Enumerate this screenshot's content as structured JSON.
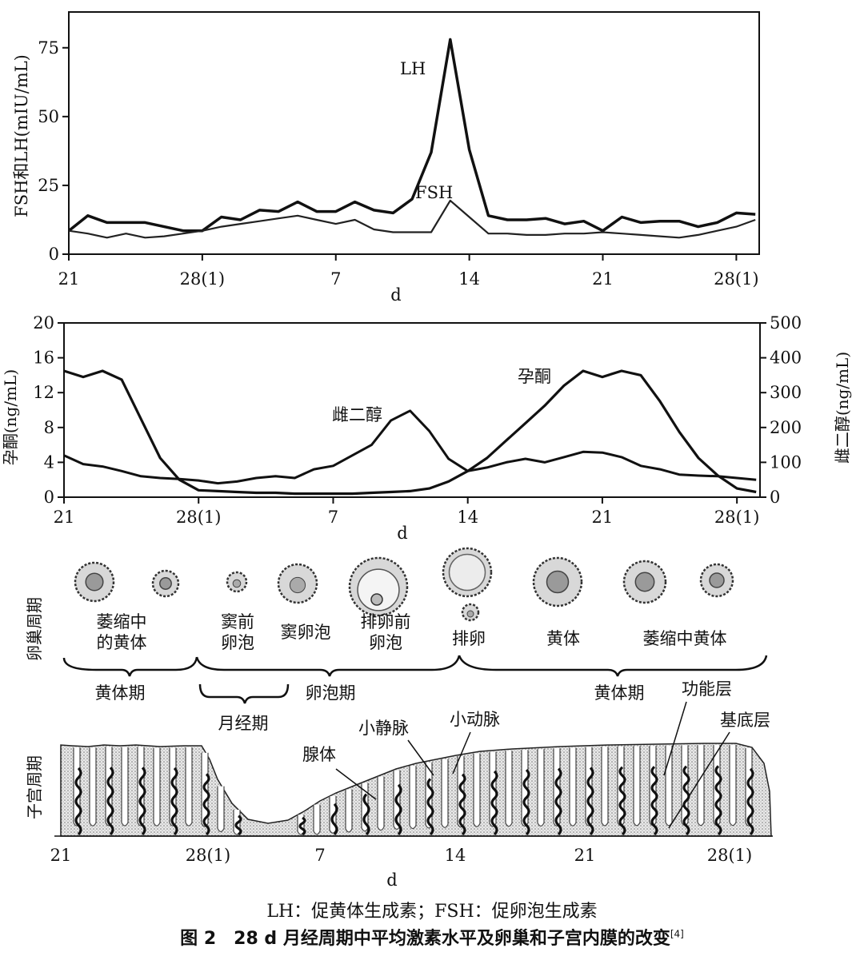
{
  "chart_data": [
    {
      "type": "line",
      "ylabel": "FSH和LH(mIU/mL)",
      "xlabel": "d",
      "x_ticks": [
        "21",
        "28(1)",
        "7",
        "14",
        "21",
        "28(1)"
      ],
      "x_tick_days": [
        0,
        7,
        14,
        21,
        28,
        35
      ],
      "y_ticks": [
        "0",
        "25",
        "50",
        "75"
      ],
      "ylim": [
        0,
        88
      ],
      "series": [
        {
          "name": "LH",
          "x": [
            0,
            1,
            2,
            3,
            4,
            5,
            6,
            7,
            8,
            9,
            10,
            11,
            12,
            13,
            14,
            15,
            16,
            17,
            18,
            19,
            20,
            21,
            22,
            23,
            24,
            25,
            26,
            27,
            28,
            29,
            30,
            31,
            32,
            33,
            34,
            35,
            36
          ],
          "y": [
            8.5,
            14,
            11.5,
            11.5,
            11.5,
            10,
            8.5,
            8.5,
            13.5,
            12.5,
            16,
            15.5,
            19,
            15.5,
            15.5,
            19,
            16,
            15,
            20,
            37,
            78,
            38,
            14,
            12.5,
            12.5,
            13,
            11,
            12,
            8.5,
            13.5,
            11.5,
            12,
            12,
            10,
            11.5,
            15,
            14.5
          ]
        },
        {
          "name": "FSH",
          "x": [
            0,
            1,
            2,
            3,
            4,
            5,
            6,
            7,
            8,
            9,
            10,
            11,
            12,
            13,
            14,
            15,
            16,
            17,
            18,
            19,
            20,
            21,
            22,
            23,
            24,
            25,
            26,
            27,
            28,
            29,
            30,
            31,
            32,
            33,
            34,
            35,
            36
          ],
          "y": [
            8.5,
            7.5,
            6,
            7.5,
            6,
            6.5,
            7.5,
            8.5,
            10,
            11,
            12,
            13,
            14,
            12.5,
            11,
            12.5,
            9,
            8,
            8,
            8,
            19.5,
            13.5,
            7.5,
            7.5,
            7,
            7,
            7.5,
            7.5,
            8,
            7.5,
            7,
            6.5,
            6,
            7,
            8.5,
            10,
            12.5
          ]
        }
      ]
    },
    {
      "type": "line",
      "ylabel": "孕酮(ng/mL)",
      "ylabel_right": "雌二醇(ng/mL)",
      "xlabel": "d",
      "x_ticks": [
        "21",
        "28(1)",
        "7",
        "14",
        "21",
        "28(1)"
      ],
      "x_tick_days": [
        0,
        7,
        14,
        21,
        28,
        35
      ],
      "y_ticks": [
        "0",
        "4",
        "8",
        "12",
        "16",
        "20"
      ],
      "y_right_ticks": [
        "0",
        "100",
        "200",
        "300",
        "400",
        "500"
      ],
      "ylim": [
        0,
        20
      ],
      "ylim_right": [
        0,
        500
      ],
      "series": [
        {
          "name": "孕酮",
          "axis": "left",
          "x": [
            0,
            1,
            2,
            3,
            4,
            5,
            6,
            7,
            8,
            9,
            10,
            11,
            12,
            13,
            14,
            15,
            16,
            17,
            18,
            19,
            20,
            21,
            22,
            23,
            24,
            25,
            26,
            27,
            28,
            29,
            30,
            31,
            32,
            33,
            34,
            35,
            36
          ],
          "y": [
            14.5,
            13.8,
            14.5,
            13.5,
            9,
            4.5,
            2,
            0.8,
            0.7,
            0.6,
            0.5,
            0.5,
            0.4,
            0.4,
            0.4,
            0.4,
            0.5,
            0.6,
            0.7,
            1,
            1.8,
            3,
            4.5,
            6.5,
            8.5,
            10.5,
            12.8,
            14.5,
            13.8,
            14.5,
            14,
            11,
            7.5,
            4.5,
            2.5,
            1,
            0.6
          ]
        },
        {
          "name": "雌二醇",
          "axis": "right",
          "x": [
            0,
            1,
            2,
            3,
            4,
            5,
            6,
            7,
            8,
            9,
            10,
            11,
            12,
            13,
            14,
            15,
            16,
            17,
            18,
            19,
            20,
            21,
            22,
            23,
            24,
            25,
            26,
            27,
            28,
            29,
            30,
            31,
            32,
            33,
            34,
            35,
            36
          ],
          "y": [
            120,
            95,
            88,
            75,
            60,
            55,
            52,
            48,
            40,
            45,
            55,
            60,
            55,
            80,
            90,
            120,
            150,
            220,
            248,
            190,
            110,
            75,
            85,
            100,
            110,
            100,
            115,
            130,
            128,
            115,
            90,
            80,
            65,
            62,
            60,
            55,
            50
          ]
        }
      ]
    }
  ],
  "plot_labels": {
    "lh": "LH",
    "fsh": "FSH",
    "progesterone": "孕酮",
    "estradiol": "雌二醇"
  },
  "ovary": {
    "label": "卵巢周期",
    "stages": [
      "萎缩中\n的黄体",
      "窦前\n卵泡",
      "窦卵泡",
      "排卵前\n卵泡",
      "排卵",
      "黄体",
      "萎缩中黄体"
    ],
    "phases": [
      "黄体期",
      "卵泡期",
      "黄体期"
    ],
    "menstrual": "月经期"
  },
  "uterus": {
    "label": "子宫周期",
    "annotations": [
      "腺体",
      "小静脉",
      "小动脉",
      "功能层",
      "基底层"
    ],
    "x_ticks": [
      "21",
      "28(1)",
      "7",
      "14",
      "21",
      "28(1)"
    ],
    "xlabel": "d"
  },
  "caption": {
    "abbrev": "LH：促黄体生成素；FSH：促卵泡生成素",
    "title": "图 2　28 d 月经周期中平均激素水平及卵巢和子宫内膜的改变",
    "ref": "[4]"
  }
}
